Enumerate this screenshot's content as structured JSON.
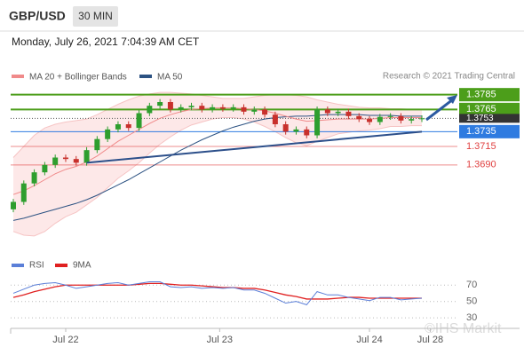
{
  "chart_data": {
    "type": "candlestick",
    "title": "GBP/USD",
    "timeframe": "30 MIN",
    "subtitle": "Monday, July 26, 2021 7:04:39 AM CET",
    "credit": "Research © 2021 Trading Central",
    "watermark": "©IHS Markit",
    "legend": [
      {
        "name": "MA 20 + Bollinger Bands",
        "color": "#f08a8a"
      },
      {
        "name": "MA 50",
        "color": "#2c5282"
      }
    ],
    "ylim": [
      1.3577,
      1.3793
    ],
    "xlim": [
      -0.3,
      42.5
    ],
    "xticks": [
      {
        "value": 5,
        "label": "Jul 22"
      },
      {
        "value": 19.7,
        "label": "Jul 23"
      },
      {
        "value": 34,
        "label": "Jul 24"
      },
      {
        "value": 39.8,
        "label": "Jul 28"
      }
    ],
    "open": [
      1.363,
      1.364,
      1.3665,
      1.368,
      1.369,
      1.37,
      1.3698,
      1.3693,
      1.371,
      1.3725,
      1.3738,
      1.3745,
      1.374,
      1.376,
      1.377,
      1.3775,
      1.3765,
      1.3768,
      1.377,
      1.3765,
      1.3768,
      1.3766,
      1.3768,
      1.3762,
      1.3765,
      1.3758,
      1.3745,
      1.3735,
      1.3738,
      1.373,
      1.3765,
      1.376,
      1.3762,
      1.3756,
      1.3752,
      1.3748,
      1.3755,
      1.3756,
      1.375,
      1.3752
    ],
    "high": [
      1.3644,
      1.3669,
      1.3684,
      1.3694,
      1.3704,
      1.3704,
      1.3702,
      1.3714,
      1.3729,
      1.3742,
      1.3749,
      1.3749,
      1.3764,
      1.3774,
      1.3779,
      1.3779,
      1.3772,
      1.3774,
      1.3774,
      1.3772,
      1.3772,
      1.3772,
      1.3772,
      1.3769,
      1.3769,
      1.3762,
      1.3749,
      1.3742,
      1.3742,
      1.3769,
      1.3769,
      1.3766,
      1.3766,
      1.376,
      1.3756,
      1.3759,
      1.376,
      1.376,
      1.3756,
      1.3757
    ],
    "low": [
      1.3626,
      1.3636,
      1.3661,
      1.3676,
      1.3686,
      1.3694,
      1.3689,
      1.3689,
      1.3706,
      1.3721,
      1.3734,
      1.3736,
      1.3736,
      1.3756,
      1.3766,
      1.3761,
      1.3761,
      1.3764,
      1.3761,
      1.3761,
      1.3762,
      1.3762,
      1.3758,
      1.3758,
      1.3754,
      1.3741,
      1.3731,
      1.3731,
      1.3726,
      1.3726,
      1.3756,
      1.3756,
      1.3752,
      1.3748,
      1.3744,
      1.3744,
      1.3751,
      1.3746,
      1.3746,
      1.3748
    ],
    "close": [
      1.364,
      1.3665,
      1.368,
      1.369,
      1.37,
      1.3698,
      1.3693,
      1.371,
      1.3725,
      1.3738,
      1.3745,
      1.374,
      1.376,
      1.377,
      1.3775,
      1.3765,
      1.3768,
      1.377,
      1.3765,
      1.3768,
      1.3766,
      1.3768,
      1.3762,
      1.3765,
      1.3758,
      1.3745,
      1.3735,
      1.3738,
      1.373,
      1.3765,
      1.376,
      1.3762,
      1.3756,
      1.3752,
      1.3748,
      1.3755,
      1.3756,
      1.375,
      1.3752,
      1.3753
    ],
    "up_color": "#2e9e2e",
    "down_color": "#c8302c",
    "series": [
      {
        "name": "MA 50",
        "color": "#2c5282",
        "values": [
          1.3615,
          1.3618,
          1.3622,
          1.3626,
          1.363,
          1.3634,
          1.3638,
          1.3643,
          1.3649,
          1.3656,
          1.3663,
          1.367,
          1.3678,
          1.3686,
          1.3694,
          1.3702,
          1.371,
          1.3717,
          1.3724,
          1.373,
          1.3736,
          1.3741,
          1.3745,
          1.3749,
          1.3752,
          1.3754,
          1.3755,
          1.3756,
          1.3756,
          1.3757,
          1.3758,
          1.3758,
          1.3758,
          1.3758,
          1.3757,
          1.3757,
          1.3757,
          1.3756,
          1.3756,
          1.3756
        ]
      },
      {
        "name": "MA 20",
        "color": "#f08a8a",
        "values": [
          1.365,
          1.3655,
          1.3662,
          1.367,
          1.3678,
          1.3684,
          1.3688,
          1.3694,
          1.3702,
          1.3712,
          1.3722,
          1.373,
          1.3738,
          1.3746,
          1.3753,
          1.3758,
          1.3762,
          1.3765,
          1.3766,
          1.3767,
          1.3767,
          1.3767,
          1.3766,
          1.3765,
          1.3763,
          1.376,
          1.3756,
          1.3752,
          1.3749,
          1.375,
          1.3751,
          1.3752,
          1.3752,
          1.3752,
          1.3752,
          1.3753,
          1.3754,
          1.3754,
          1.3754,
          1.3754
        ]
      }
    ],
    "bands": {
      "color": "#fde2e2",
      "upper": [
        1.37,
        1.3715,
        1.373,
        1.374,
        1.3745,
        1.3748,
        1.375,
        1.3752,
        1.3758,
        1.3765,
        1.3772,
        1.3778,
        1.3783,
        1.3786,
        1.3788,
        1.3788,
        1.3787,
        1.3786,
        1.3784,
        1.3782,
        1.378,
        1.378,
        1.378,
        1.3782,
        1.3784,
        1.3785,
        1.3785,
        1.3784,
        1.3782,
        1.3778,
        1.3775,
        1.3772,
        1.377,
        1.3768,
        1.3767,
        1.3767,
        1.3766,
        1.3766,
        1.3765,
        1.3765
      ],
      "lower": [
        1.36,
        1.3595,
        1.3594,
        1.36,
        1.3611,
        1.362,
        1.3626,
        1.3636,
        1.3646,
        1.3659,
        1.3672,
        1.3682,
        1.3693,
        1.3706,
        1.3718,
        1.3728,
        1.3737,
        1.3744,
        1.3748,
        1.3752,
        1.3754,
        1.3754,
        1.3752,
        1.3748,
        1.3742,
        1.3735,
        1.3727,
        1.372,
        1.3716,
        1.3722,
        1.3727,
        1.3732,
        1.3734,
        1.3736,
        1.3737,
        1.3739,
        1.3742,
        1.3742,
        1.3743,
        1.3743
      ]
    },
    "trendline": {
      "color": "#2c4f8a",
      "x": [
        7,
        39
      ],
      "y": [
        1.3693,
        1.3735
      ]
    },
    "levels": [
      {
        "value": 1.3785,
        "color": "#4c9e1a",
        "kind": "box"
      },
      {
        "value": 1.3765,
        "color": "#4c9e1a",
        "kind": "box"
      },
      {
        "value": 1.3753,
        "color": "#333333",
        "kind": "current"
      },
      {
        "value": 1.3735,
        "color": "#2f7be0",
        "kind": "box"
      },
      {
        "value": 1.3715,
        "value_label": "1.3715",
        "color": "#e04040",
        "kind": "text"
      },
      {
        "value": 1.369,
        "value_label": "1.3690",
        "color": "#e04040",
        "kind": "text"
      }
    ],
    "rsi": {
      "ylim": [
        15,
        93
      ],
      "yticks": [
        70,
        50,
        30
      ],
      "series": [
        {
          "name": "RSI",
          "color": "#5b7fd8",
          "values": [
            60,
            65,
            70,
            72,
            73,
            70,
            66,
            68,
            70,
            72,
            73,
            70,
            72,
            74,
            74,
            68,
            67,
            68,
            66,
            67,
            66,
            67,
            64,
            64,
            60,
            54,
            48,
            50,
            46,
            62,
            58,
            58,
            55,
            53,
            51,
            55,
            55,
            52,
            53,
            54
          ]
        },
        {
          "name": "9MA",
          "color": "#e02020",
          "values": [
            55,
            58,
            62,
            65,
            68,
            70,
            70,
            70,
            70,
            70,
            70,
            70,
            71,
            72,
            72,
            71,
            70,
            70,
            69,
            68,
            67,
            67,
            66,
            66,
            64,
            61,
            58,
            56,
            53,
            53,
            53,
            54,
            55,
            55,
            54,
            54,
            54,
            54,
            54,
            54
          ]
        }
      ]
    }
  }
}
